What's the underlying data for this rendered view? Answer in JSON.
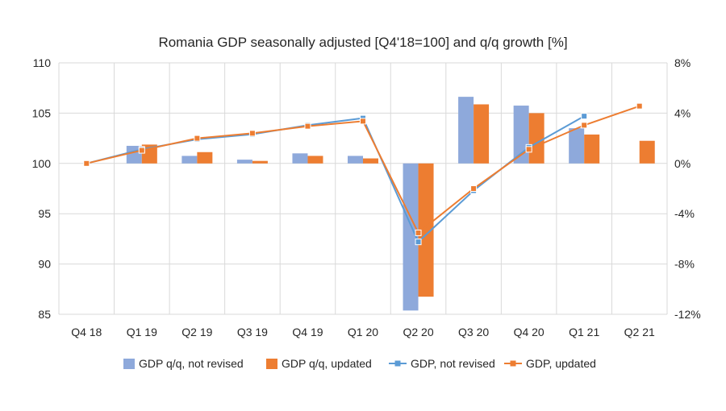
{
  "chart_data": {
    "type": "bar",
    "title": "Romania GDP seasonally adjusted [Q4'18=100] and q/q growth [%]",
    "categories": [
      "Q4 18",
      "Q1 19",
      "Q2 19",
      "Q3 19",
      "Q4 19",
      "Q1 20",
      "Q2 20",
      "Q3 20",
      "Q4 20",
      "Q1 21",
      "Q2 21"
    ],
    "left_axis": {
      "min": 85,
      "max": 110,
      "ticks": [
        "85",
        "90",
        "95",
        "100",
        "105",
        "110"
      ]
    },
    "right_axis": {
      "min": -12,
      "max": 8,
      "unit": "%",
      "ticks": [
        "-12%",
        "-8%",
        "-4%",
        "0%",
        "4%",
        "8%"
      ]
    },
    "grid": true,
    "legend_position": "bottom",
    "bar_series": [
      {
        "name": "GDP q/q, not revised",
        "axis": "right",
        "color": "#8EA9DB",
        "values": [
          null,
          1.4,
          0.6,
          0.3,
          0.8,
          0.6,
          -11.7,
          5.3,
          4.6,
          2.8,
          null
        ]
      },
      {
        "name": "GDP q/q, updated",
        "axis": "right",
        "color": "#ED7D31",
        "values": [
          null,
          1.5,
          0.9,
          0.2,
          0.6,
          0.4,
          -10.6,
          4.7,
          4.0,
          2.3,
          1.8
        ]
      }
    ],
    "line_series": [
      {
        "name": "GDP, not revised",
        "axis": "left",
        "color": "#5B9BD5",
        "values": [
          100,
          101.4,
          102.4,
          102.9,
          103.8,
          104.5,
          92.2,
          97.3,
          101.6,
          104.7,
          null
        ]
      },
      {
        "name": "GDP, updated",
        "axis": "left",
        "color": "#ED7D31",
        "values": [
          100,
          101.3,
          102.5,
          103.0,
          103.7,
          104.2,
          93.1,
          97.5,
          101.4,
          103.8,
          105.7
        ]
      }
    ]
  }
}
